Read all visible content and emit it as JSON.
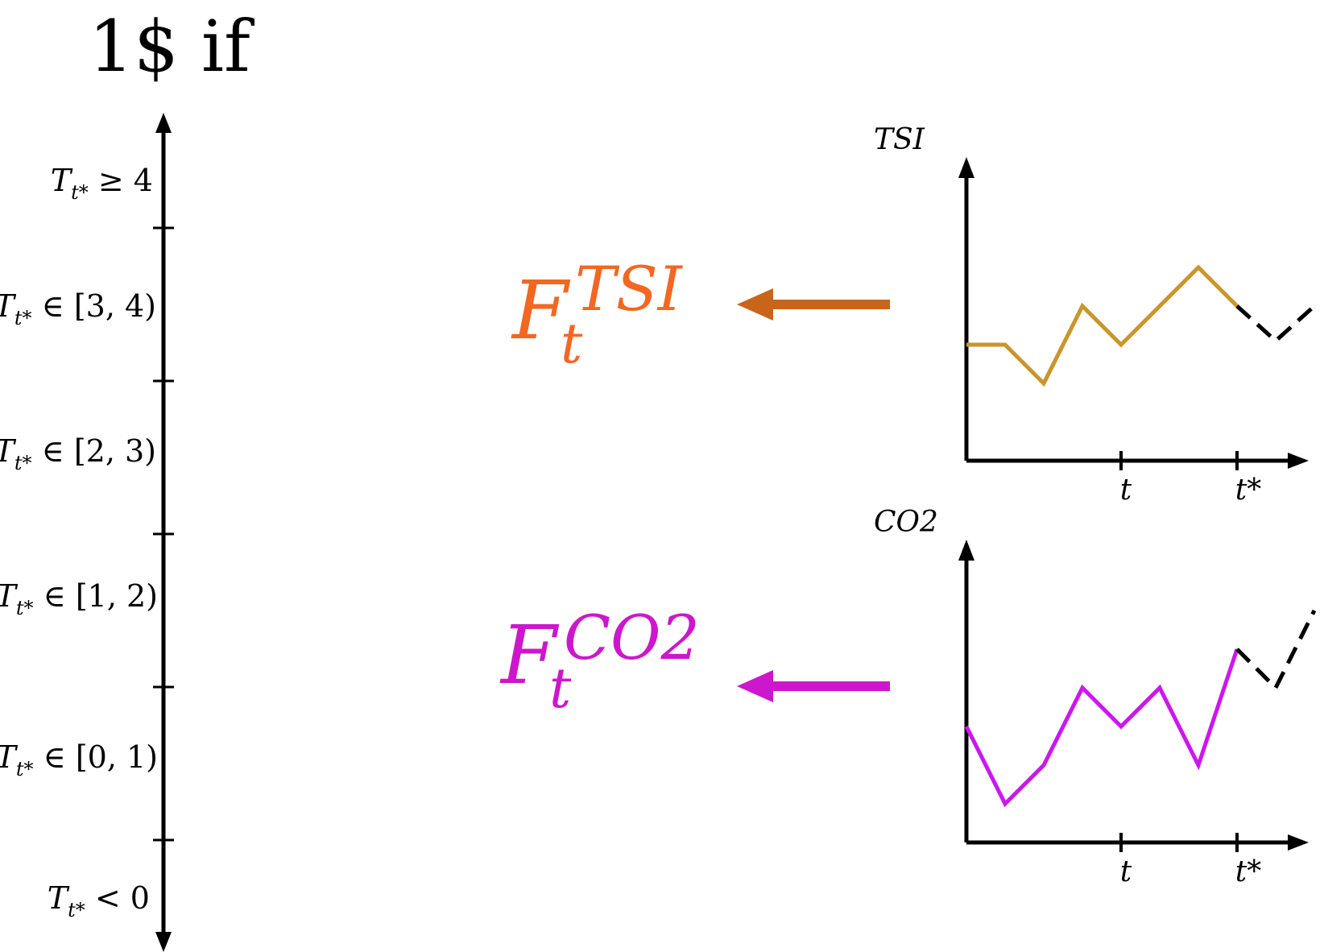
{
  "header": {
    "title": "1$ if"
  },
  "axis": {
    "bins": [
      {
        "var": "T",
        "sub": "t*",
        "rel": "≥ 4"
      },
      {
        "var": "T",
        "sub": "t*",
        "rel": "∈ [3, 4)"
      },
      {
        "var": "T",
        "sub": "t*",
        "rel": "∈ [2, 3)"
      },
      {
        "var": "T",
        "sub": "t*",
        "rel": "∈ [1, 2)"
      },
      {
        "var": "T",
        "sub": "t*",
        "rel": "∈ [0, 1)"
      },
      {
        "var": "T",
        "sub": "t*",
        "rel": "< 0"
      }
    ]
  },
  "forecasts": [
    {
      "base": "F",
      "sub": "t",
      "sup": "TSI",
      "color": "#f26722",
      "arrow_color": "#c8651b"
    },
    {
      "base": "F",
      "sub": "t",
      "sup": "CO2",
      "color": "#cc17cc",
      "arrow_color": "#cc17cc"
    }
  ],
  "chart_data": [
    {
      "type": "line",
      "ylabel": "TSI",
      "x_ticks": [
        {
          "x": 4,
          "label": "t"
        },
        {
          "x": 7,
          "label": "t*"
        }
      ],
      "x": [
        0,
        1,
        2,
        3,
        4,
        5,
        6,
        7,
        8,
        9
      ],
      "series": [
        {
          "style": "solid",
          "color": "#c8962a",
          "x": [
            0,
            1,
            2,
            3,
            4,
            5,
            6,
            7
          ],
          "values": [
            3,
            3,
            2,
            4,
            3,
            4,
            5,
            4
          ]
        },
        {
          "style": "dashed",
          "color": "#000000",
          "x": [
            7,
            8,
            9
          ],
          "values": [
            4,
            3.1,
            4
          ]
        }
      ],
      "ylim": [
        0,
        8
      ],
      "xlim": [
        0,
        8.5
      ]
    },
    {
      "type": "line",
      "ylabel": "CO2",
      "x_ticks": [
        {
          "x": 4,
          "label": "t"
        },
        {
          "x": 7,
          "label": "t*"
        }
      ],
      "x": [
        0,
        1,
        2,
        3,
        4,
        5,
        6,
        7,
        8,
        9
      ],
      "series": [
        {
          "style": "solid",
          "color": "#cc17ee",
          "x": [
            0,
            1,
            2,
            3,
            4,
            5,
            6,
            7
          ],
          "values": [
            3,
            1,
            2,
            4,
            3,
            4,
            2,
            5
          ]
        },
        {
          "style": "dashed",
          "color": "#000000",
          "x": [
            7,
            8,
            9
          ],
          "values": [
            5,
            4,
            6
          ]
        }
      ],
      "ylim": [
        0,
        8
      ],
      "xlim": [
        0,
        8.5
      ]
    }
  ]
}
